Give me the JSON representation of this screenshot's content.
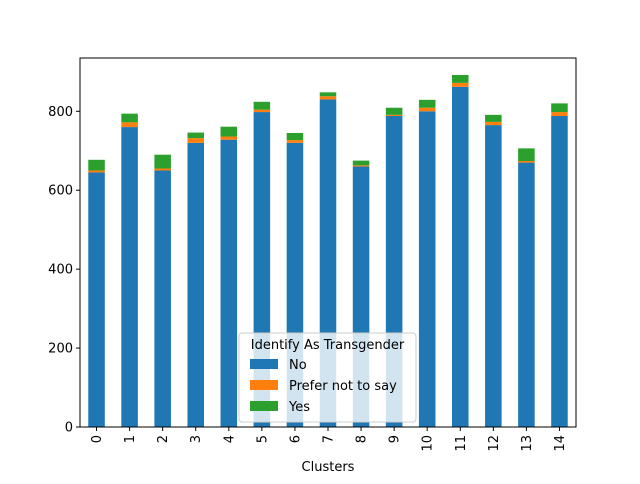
{
  "chart_data": {
    "type": "bar",
    "stacked": true,
    "title": "",
    "xlabel": "Clusters",
    "ylabel": "",
    "categories": [
      "0",
      "1",
      "2",
      "3",
      "4",
      "5",
      "6",
      "7",
      "8",
      "9",
      "10",
      "11",
      "12",
      "13",
      "14"
    ],
    "ylim": [
      0,
      935
    ],
    "yticks": [
      0,
      200,
      400,
      600,
      800
    ],
    "grid": false,
    "legend": {
      "title": "Identify As Transgender",
      "placement": "lower center"
    },
    "series": [
      {
        "name": "No",
        "color": "#1f77b4",
        "values": [
          645,
          760,
          650,
          720,
          728,
          798,
          720,
          830,
          660,
          788,
          800,
          862,
          765,
          670,
          788
        ]
      },
      {
        "name": "Prefer not to say",
        "color": "#ff7f0e",
        "values": [
          5,
          12,
          5,
          12,
          8,
          6,
          7,
          8,
          3,
          3,
          9,
          10,
          8,
          4,
          10
        ]
      },
      {
        "name": "Yes",
        "color": "#2ca02c",
        "values": [
          27,
          22,
          35,
          14,
          25,
          20,
          18,
          10,
          12,
          18,
          20,
          20,
          18,
          32,
          22
        ]
      }
    ]
  }
}
